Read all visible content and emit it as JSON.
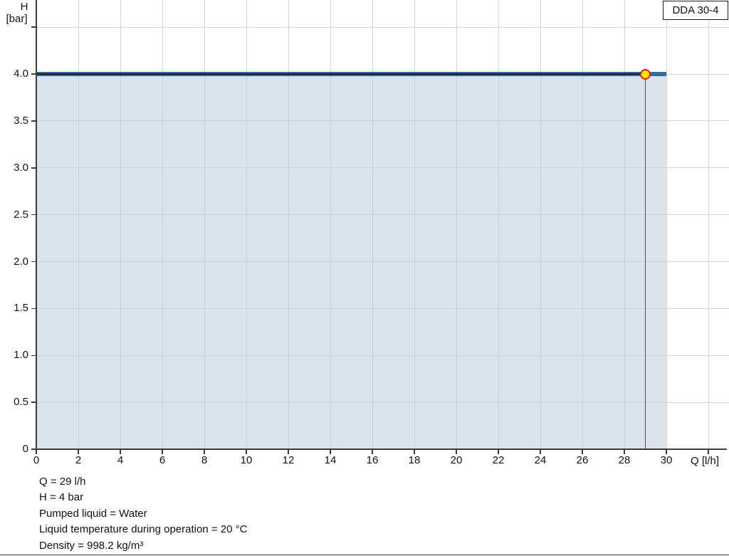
{
  "chart": {
    "pump_model": "DDA 30-4",
    "y_axis": {
      "title_symbol": "H",
      "title_unit": "[bar]",
      "ticks": [
        {
          "value": 0,
          "label": "0"
        },
        {
          "value": 0.5,
          "label": "0.5"
        },
        {
          "value": 1,
          "label": "1.0"
        },
        {
          "value": 1.5,
          "label": "1.5"
        },
        {
          "value": 2,
          "label": "2.0"
        },
        {
          "value": 2.5,
          "label": "2.5"
        },
        {
          "value": 3,
          "label": "3.0"
        },
        {
          "value": 3.5,
          "label": "3.5"
        },
        {
          "value": 4,
          "label": "4.0"
        },
        {
          "value": 4.5,
          "label": ""
        }
      ]
    },
    "x_axis": {
      "title": "Q [l/h]",
      "ticks": [
        {
          "value": 0,
          "label": "0"
        },
        {
          "value": 2,
          "label": "2"
        },
        {
          "value": 4,
          "label": "4"
        },
        {
          "value": 6,
          "label": "6"
        },
        {
          "value": 8,
          "label": "8"
        },
        {
          "value": 10,
          "label": "10"
        },
        {
          "value": 12,
          "label": "12"
        },
        {
          "value": 14,
          "label": "14"
        },
        {
          "value": 16,
          "label": "16"
        },
        {
          "value": 18,
          "label": "18"
        },
        {
          "value": 20,
          "label": "20"
        },
        {
          "value": 22,
          "label": "22"
        },
        {
          "value": 24,
          "label": "24"
        },
        {
          "value": 26,
          "label": "26"
        },
        {
          "value": 28,
          "label": "28"
        },
        {
          "value": 30,
          "label": "30"
        },
        {
          "value": 32,
          "label": ""
        }
      ]
    },
    "colors": {
      "curve": "#2e6da4",
      "fill": "#b8c8d8",
      "fill_opacity": 0.5,
      "crosshair_h": "#1a1a1a",
      "crosshair_v": "#4a4a4a",
      "marker_fill": "#ffe400",
      "marker_ring": "#e11b22",
      "grid": "#d6d6d6",
      "axis": "#3c3c3c"
    }
  },
  "annotations": {
    "lines": [
      "Q = 29 l/h",
      "H = 4 bar",
      "Pumped liquid = Water",
      "Liquid temperature during operation = 20 °C",
      "Density = 998.2 kg/m³"
    ]
  },
  "chart_data": {
    "type": "area",
    "title": "DDA 30-4",
    "xlabel": "Q [l/h]",
    "ylabel": "H [bar]",
    "xlim": [
      0,
      32
    ],
    "ylim": [
      0,
      4.6
    ],
    "grid": true,
    "legend_position": "none",
    "x_tick_values": [
      0,
      2,
      4,
      6,
      8,
      10,
      12,
      14,
      16,
      18,
      20,
      22,
      24,
      26,
      28,
      30
    ],
    "y_tick_values": [
      0,
      0.5,
      1.0,
      1.5,
      2.0,
      2.5,
      3.0,
      3.5,
      4.0
    ],
    "series": [
      {
        "name": "DDA 30-4 pump curve",
        "x": [
          0,
          30
        ],
        "y": [
          4.0,
          4.0
        ],
        "color": "#2e6da4",
        "filled_to_zero": true
      }
    ],
    "operating_point": {
      "q_lh": 29,
      "h_bar": 4.0
    }
  }
}
